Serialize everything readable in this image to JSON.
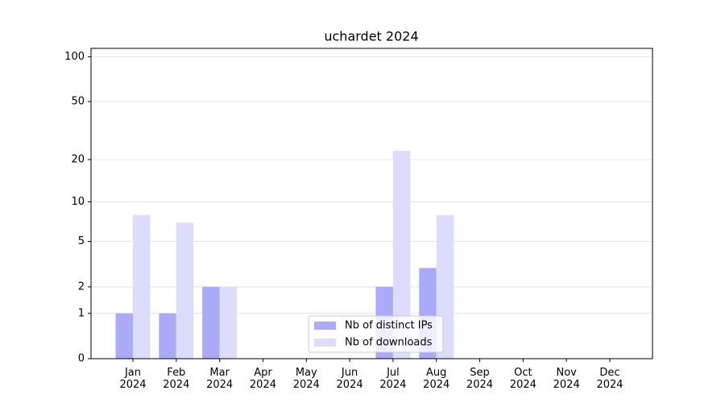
{
  "chart_data": {
    "type": "bar",
    "title": "uchardet 2024",
    "categories": [
      "Jan 2024",
      "Feb 2024",
      "Mar 2024",
      "Apr 2024",
      "May 2024",
      "Jun 2024",
      "Jul 2024",
      "Aug 2024",
      "Sep 2024",
      "Oct 2024",
      "Nov 2024",
      "Dec 2024"
    ],
    "series": [
      {
        "name": "Nb of distinct IPs",
        "color": "#aaaaf8",
        "values": [
          1,
          1,
          2,
          0,
          0,
          0,
          2,
          3,
          0,
          0,
          0,
          0
        ]
      },
      {
        "name": "Nb of downloads",
        "color": "#dcdcfd",
        "values": [
          8,
          7,
          2,
          0,
          0,
          0,
          23,
          8,
          0,
          0,
          0,
          0
        ]
      }
    ],
    "yscale": "log1p",
    "ylim": [
      0,
      114
    ],
    "yticks": [
      0,
      1,
      2,
      5,
      10,
      20,
      50,
      100
    ],
    "grid": true,
    "legend": "lower center"
  }
}
